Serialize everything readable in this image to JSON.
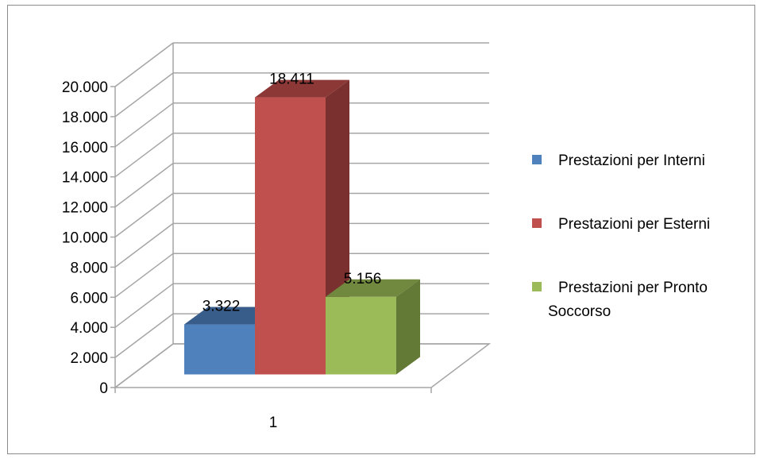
{
  "chart_data": {
    "type": "bar",
    "categories": [
      "1"
    ],
    "series": [
      {
        "name": "Prestazioni per Interni",
        "values": [
          3322
        ],
        "label": "3.322",
        "color": "#4F81BD",
        "top_color": "#385D8A",
        "side_color": "#2F4F78"
      },
      {
        "name": "Prestazioni per Esterni",
        "values": [
          18411
        ],
        "label": "18.411",
        "color": "#C0504D",
        "top_color": "#8C3836",
        "side_color": "#7A302E"
      },
      {
        "name": "Prestazioni per Pronto Soccorso",
        "values": [
          5156
        ],
        "label": "5.156",
        "color": "#9BBB59",
        "top_color": "#71893F",
        "side_color": "#637A37"
      }
    ],
    "ylim": [
      0,
      20000
    ],
    "y_ticks": [
      0,
      2000,
      4000,
      6000,
      8000,
      10000,
      12000,
      14000,
      16000,
      18000,
      20000
    ],
    "y_tick_labels": [
      "0",
      "2.000",
      "4.000",
      "6.000",
      "8.000",
      "10.000",
      "12.000",
      "14.000",
      "16.000",
      "18.000",
      "20.000"
    ],
    "grid": true,
    "legend_position": "right",
    "style": "3d-column"
  }
}
